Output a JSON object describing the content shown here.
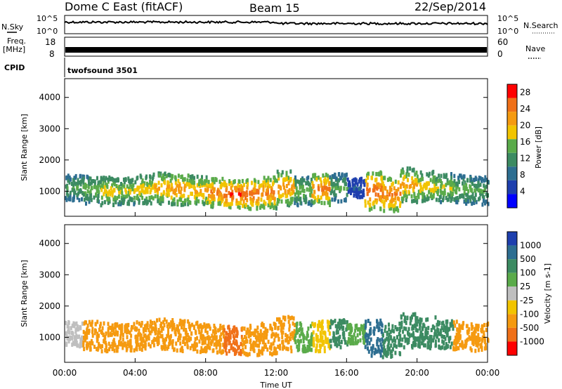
{
  "header": {
    "station": "Dome C East (fitACF)",
    "beam": "Beam 15",
    "date": "22/Sep/2014"
  },
  "strip_top": {
    "left_label": "N.Sky",
    "right_label": "N.Search",
    "left_ticks": [
      "10^5",
      "10^0"
    ],
    "right_ticks": [
      "10^5",
      "10^0"
    ]
  },
  "strip_freq": {
    "left_label_1": "Freq.",
    "left_label_2": "[MHz]",
    "left_ticks": [
      "18",
      "8"
    ],
    "right_label": "Nave",
    "right_ticks": [
      "60",
      "0"
    ]
  },
  "cpid": {
    "label": "CPID",
    "value": "twofsound 3501"
  },
  "colors": {
    "power": [
      "#0000ff",
      "#1e3fae",
      "#2d6e91",
      "#3c8b62",
      "#5aab4a",
      "#f2c400",
      "#f59a10",
      "#f07018",
      "#ff0000"
    ],
    "velocity": [
      "#1e3fae",
      "#2d6e91",
      "#3c8b62",
      "#5aab4a",
      "#bfbfbf",
      "#f2c400",
      "#f59a10",
      "#f07018",
      "#ff0000"
    ]
  },
  "chart_data": [
    {
      "type": "heatmap",
      "panel": "power",
      "xlabel": "",
      "ylabel": "Slant Range [km]",
      "yticks": [
        "1000",
        "2000",
        "3000",
        "4000"
      ],
      "ylim": [
        200,
        4600
      ],
      "colorbar_label": "Power [dB]",
      "colorbar_ticks": [
        "4",
        "8",
        "12",
        "16",
        "20",
        "24",
        "28"
      ],
      "colorbar_range": [
        0,
        30
      ],
      "x": [
        0.5,
        1.5,
        2.5,
        3.5,
        4.5,
        5.5,
        6.5,
        7.5,
        8.5,
        9.5,
        10.5,
        11.5,
        12.5,
        13.5,
        14.5,
        15.5,
        16.5,
        17.5,
        18.5,
        19.5,
        20.5,
        21.5,
        22.5,
        23.5
      ],
      "band_center_km": [
        1100,
        1050,
        1000,
        1000,
        1050,
        1100,
        1050,
        1000,
        950,
        900,
        900,
        950,
        1100,
        1000,
        1050,
        1100,
        1100,
        1000,
        900,
        1200,
        1150,
        1100,
        1050,
        1000
      ],
      "band_width_km": [
        800,
        900,
        900,
        850,
        900,
        1000,
        1000,
        950,
        900,
        900,
        950,
        1000,
        1100,
        900,
        1000,
        900,
        600,
        1200,
        1100,
        1100,
        1000,
        900,
        900,
        900
      ],
      "peak_power_db": [
        14,
        16,
        20,
        18,
        20,
        22,
        24,
        22,
        26,
        29,
        28,
        26,
        24,
        16,
        26,
        14,
        6,
        28,
        26,
        22,
        20,
        18,
        16,
        14
      ]
    },
    {
      "type": "heatmap",
      "panel": "velocity",
      "xlabel": "Time UT",
      "ylabel": "Slant Range [km]",
      "xticks": [
        "00:00",
        "04:00",
        "08:00",
        "12:00",
        "16:00",
        "20:00",
        "00:00"
      ],
      "yticks": [
        "1000",
        "2000",
        "3000",
        "4000"
      ],
      "ylim": [
        200,
        4600
      ],
      "colorbar_label": "Velocity [m s-1]",
      "colorbar_ticks": [
        "1000",
        "500",
        "100",
        "25",
        "-25",
        "-100",
        "-500",
        "-1000"
      ],
      "x": [
        0.5,
        1.5,
        2.5,
        3.5,
        4.5,
        5.5,
        6.5,
        7.5,
        8.5,
        9.5,
        10.5,
        11.5,
        12.5,
        13.5,
        14.5,
        15.5,
        16.5,
        17.5,
        18.5,
        19.5,
        20.5,
        21.5,
        22.5,
        23.5
      ],
      "band_center_km": [
        1100,
        1050,
        1000,
        1000,
        1050,
        1100,
        1050,
        1000,
        950,
        900,
        900,
        950,
        1100,
        1000,
        1050,
        1100,
        1100,
        1000,
        900,
        1200,
        1150,
        1100,
        1050,
        1000
      ],
      "band_width_km": [
        800,
        900,
        900,
        850,
        900,
        1000,
        1000,
        950,
        900,
        900,
        950,
        1000,
        1100,
        900,
        1000,
        900,
        600,
        1200,
        1100,
        1100,
        1000,
        900,
        900,
        900
      ],
      "dominant_velocity_ms": [
        -20,
        -150,
        -200,
        -180,
        -200,
        -150,
        -180,
        -200,
        -250,
        -300,
        -250,
        -200,
        -150,
        50,
        -50,
        100,
        50,
        600,
        150,
        200,
        150,
        100,
        -150,
        -200
      ]
    }
  ]
}
